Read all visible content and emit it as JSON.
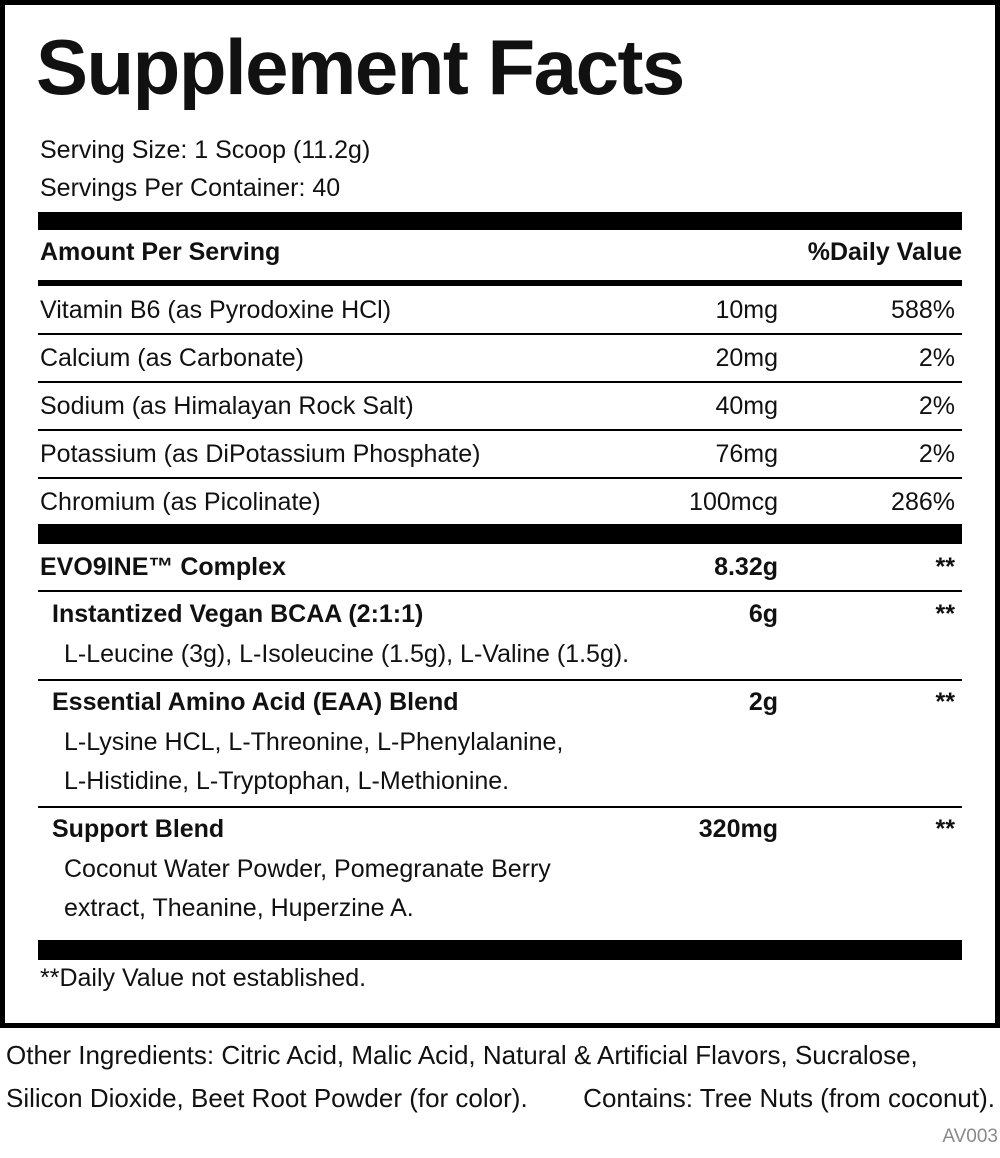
{
  "title": "Supplement Facts",
  "serving": [
    "Serving Size: 1 Scoop (11.2g)",
    "Servings Per Container: 40"
  ],
  "header": {
    "amount": "Amount Per Serving",
    "daily_value": "%Daily Value"
  },
  "nutrients": [
    {
      "name": "Vitamin B6 (as Pyrodoxine HCl)",
      "amount": "10mg",
      "dv": "588%"
    },
    {
      "name": "Calcium (as Carbonate)",
      "amount": "20mg",
      "dv": "2%"
    },
    {
      "name": "Sodium (as Himalayan Rock Salt)",
      "amount": "40mg",
      "dv": "2%"
    },
    {
      "name": "Potassium (as DiPotassium Phosphate)",
      "amount": "76mg",
      "dv": "2%"
    },
    {
      "name": "Chromium (as Picolinate)",
      "amount": "100mcg",
      "dv": "286%"
    }
  ],
  "complex": {
    "name": "EVO9INE™ Complex",
    "amount": "8.32g",
    "dv": "**",
    "blends": [
      {
        "name": "Instantized Vegan BCAA (2:1:1)",
        "amount": "6g",
        "dv": "**",
        "ingredients": [
          "L-Leucine (3g), L-Isoleucine (1.5g), L-Valine (1.5g)."
        ]
      },
      {
        "name": "Essential Amino Acid (EAA) Blend",
        "amount": "2g",
        "dv": "**",
        "ingredients": [
          "L-Lysine HCL, L-Threonine, L-Phenylalanine,",
          "L-Histidine, L-Tryptophan, L-Methionine."
        ]
      },
      {
        "name": "Support Blend",
        "amount": "320mg",
        "dv": "**",
        "ingredients": [
          "Coconut Water Powder, Pomegranate Berry",
          "extract, Theanine, Huperzine A."
        ]
      }
    ]
  },
  "footnote": "**Daily Value not established.",
  "other_ingredients": {
    "lines": [
      "Other Ingredients: Citric Acid, Malic Acid, Natural & Artificial Flavors, Sucralose,",
      "Silicon Dioxide, Beet Root Powder (for color)."
    ],
    "contains": "Contains: Tree Nuts (from coconut)."
  },
  "code": "AV003"
}
